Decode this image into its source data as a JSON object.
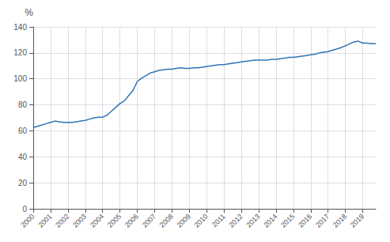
{
  "chart_data": {
    "type": "line",
    "ylabel": "%",
    "color": "#2e75b6",
    "grid": true,
    "xlim": [
      2000,
      2019.75
    ],
    "ylim": [
      0,
      140
    ],
    "xticks": [
      2000,
      2001,
      2002,
      2003,
      2004,
      2005,
      2006,
      2007,
      2008,
      2009,
      2010,
      2011,
      2012,
      2013,
      2014,
      2015,
      2016,
      2017,
      2018,
      2019
    ],
    "yticks": [
      0,
      20,
      40,
      60,
      80,
      100,
      120,
      140
    ],
    "x": [
      2000.0,
      2000.25,
      2000.5,
      2000.75,
      2001.0,
      2001.25,
      2001.5,
      2001.75,
      2002.0,
      2002.25,
      2002.5,
      2002.75,
      2003.0,
      2003.25,
      2003.5,
      2003.75,
      2004.0,
      2004.25,
      2004.5,
      2004.75,
      2005.0,
      2005.25,
      2005.5,
      2005.75,
      2006.0,
      2006.25,
      2006.5,
      2006.75,
      2007.0,
      2007.25,
      2007.5,
      2007.75,
      2008.0,
      2008.25,
      2008.5,
      2008.75,
      2009.0,
      2009.25,
      2009.5,
      2009.75,
      2010.0,
      2010.25,
      2010.5,
      2010.75,
      2011.0,
      2011.25,
      2011.5,
      2011.75,
      2012.0,
      2012.25,
      2012.5,
      2012.75,
      2013.0,
      2013.25,
      2013.5,
      2013.75,
      2014.0,
      2014.25,
      2014.5,
      2014.75,
      2015.0,
      2015.25,
      2015.5,
      2015.75,
      2016.0,
      2016.25,
      2016.5,
      2016.75,
      2017.0,
      2017.25,
      2017.5,
      2017.75,
      2018.0,
      2018.25,
      2018.5,
      2018.75,
      2019.0,
      2019.25,
      2019.5,
      2019.75
    ],
    "values": [
      62.5,
      63.5,
      64.5,
      65.5,
      66.5,
      67.5,
      67.0,
      66.5,
      66.5,
      66.5,
      67.0,
      67.5,
      68.0,
      69.0,
      70.0,
      70.5,
      70.5,
      72.0,
      75.0,
      78.0,
      81.0,
      83.0,
      87.0,
      91.0,
      98.0,
      100.5,
      102.5,
      104.5,
      105.5,
      106.5,
      107.0,
      107.5,
      107.5,
      108.0,
      108.5,
      108.0,
      108.0,
      108.5,
      108.5,
      109.0,
      109.5,
      110.0,
      110.5,
      111.0,
      111.0,
      111.5,
      112.0,
      112.5,
      113.0,
      113.5,
      114.0,
      114.5,
      114.5,
      114.5,
      114.5,
      115.0,
      115.0,
      115.5,
      116.0,
      116.5,
      116.5,
      117.0,
      117.5,
      118.0,
      118.5,
      119.0,
      120.0,
      120.5,
      121.0,
      122.0,
      123.0,
      124.0,
      125.5,
      127.0,
      128.5,
      129.0,
      127.5,
      127.5,
      127.0,
      127.0
    ]
  }
}
